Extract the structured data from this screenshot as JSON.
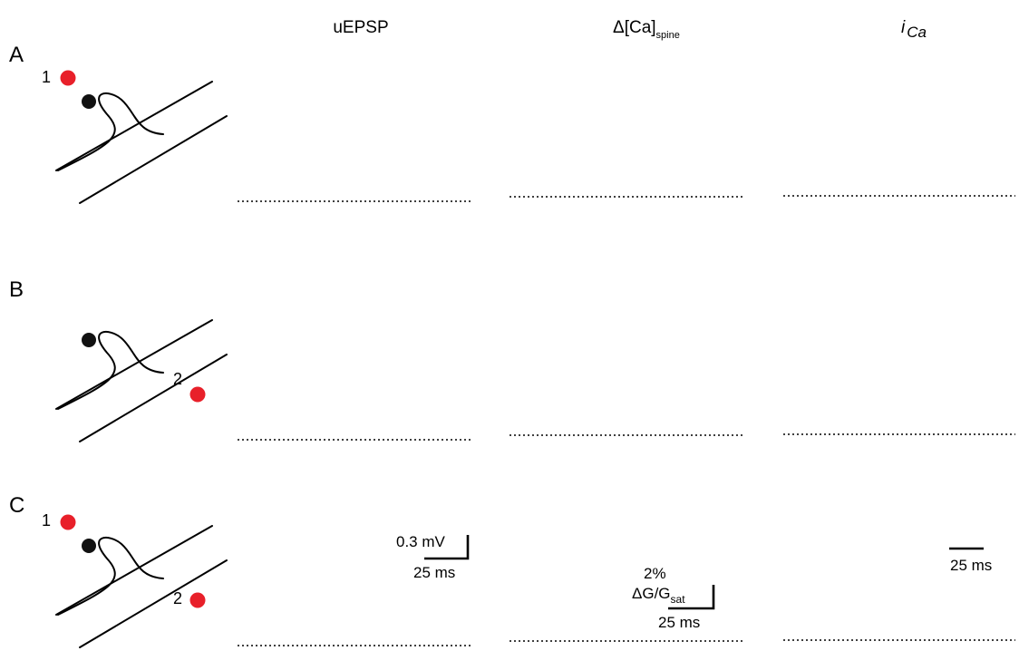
{
  "headers": {
    "uepsp": "uEPSP",
    "ca_delta": "Δ[Ca]",
    "ca_sub": "spine",
    "ica_i": "i",
    "ica_sub": "Ca"
  },
  "rows": [
    {
      "letter": "A",
      "site1_label": "1",
      "site2_label": ""
    },
    {
      "letter": "B",
      "site1_label": "",
      "site2_label": "2"
    },
    {
      "letter": "C",
      "site1_label": "1",
      "site2_label": "2"
    }
  ],
  "scalebars": {
    "uepsp_v": "0.3 mV",
    "uepsp_t": "25 ms",
    "ca_pct": "2%",
    "ca_unit_main": "ΔG/G",
    "ca_unit_sub": "sat",
    "ca_t": "25 ms",
    "ica_t": "25 ms"
  },
  "colors": {
    "control": "#1a1a1a",
    "uncaging": "#e8202a",
    "control_sem": "#a9c4d6",
    "uncaging_sem": "#f2a7c2",
    "spine_head": "#111111",
    "uncaging_spot": "#e8202a"
  }
}
